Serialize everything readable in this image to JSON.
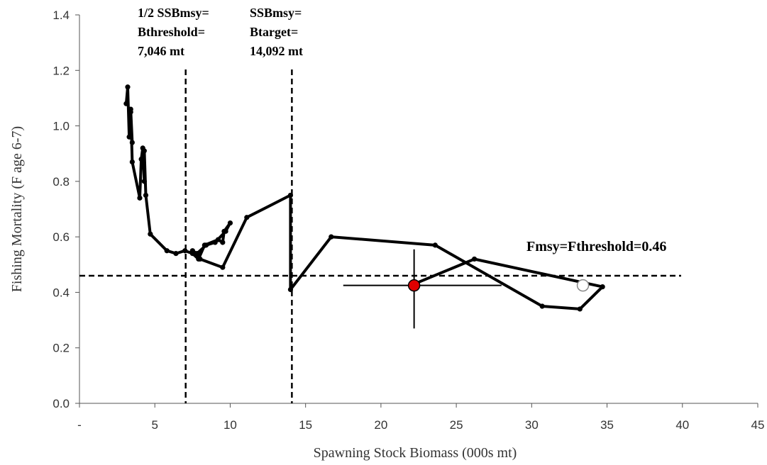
{
  "chart_data": {
    "type": "line",
    "title": "",
    "xlabel": "Spawning Stock Biomass (000s mt)",
    "ylabel": "Fishing Mortality (F age 6-7)",
    "xlim": [
      0,
      45
    ],
    "ylim": [
      0,
      1.4
    ],
    "x_ticks": [
      0,
      5,
      10,
      15,
      20,
      25,
      30,
      35,
      40,
      45
    ],
    "x_tick_labels": [
      "-",
      "5",
      "10",
      "15",
      "20",
      "25",
      "30",
      "35",
      "40",
      "45"
    ],
    "y_ticks": [
      0,
      0.2,
      0.4,
      0.6,
      0.8,
      1.0,
      1.2,
      1.4
    ],
    "y_tick_labels": [
      "0.0",
      "0.2",
      "0.4",
      "0.6",
      "0.8",
      "1.0",
      "1.2",
      "1.4"
    ],
    "grid": false,
    "series": [
      {
        "color": "#000000",
        "points": [
          [
            3.1,
            1.08
          ],
          [
            3.2,
            1.14
          ],
          [
            3.3,
            0.96
          ],
          [
            3.4,
            1.05
          ],
          [
            3.5,
            0.94
          ],
          [
            3.4,
            1.06
          ],
          [
            3.5,
            0.87
          ],
          [
            4.0,
            0.74
          ],
          [
            4.1,
            0.88
          ],
          [
            4.2,
            0.92
          ],
          [
            4.3,
            0.8
          ],
          [
            4.3,
            0.91
          ],
          [
            4.4,
            0.75
          ],
          [
            4.7,
            0.61
          ],
          [
            5.8,
            0.55
          ],
          [
            6.4,
            0.54
          ],
          [
            7.0,
            0.55
          ],
          [
            7.5,
            0.54
          ],
          [
            7.9,
            0.52
          ],
          [
            8.3,
            0.57
          ],
          [
            9.2,
            0.59
          ],
          [
            9.5,
            0.58
          ],
          [
            9.6,
            0.62
          ],
          [
            10.0,
            0.65
          ],
          [
            9.7,
            0.62
          ],
          [
            9.0,
            0.58
          ],
          [
            8.4,
            0.57
          ],
          [
            7.8,
            0.54
          ],
          [
            7.5,
            0.55
          ],
          [
            8.0,
            0.52
          ],
          [
            9.5,
            0.49
          ],
          [
            11.1,
            0.67
          ],
          [
            14.0,
            0.75
          ],
          [
            14.0,
            0.41
          ],
          [
            16.7,
            0.6
          ],
          [
            23.6,
            0.57
          ],
          [
            30.7,
            0.35
          ],
          [
            33.2,
            0.34
          ],
          [
            34.7,
            0.42
          ],
          [
            26.2,
            0.52
          ],
          [
            22.2,
            0.43
          ]
        ]
      }
    ],
    "current_estimate": {
      "x": 22.2,
      "y": 0.425,
      "x_interval": [
        17.5,
        28.0
      ],
      "y_interval": [
        0.27,
        0.555
      ],
      "color": "#e00000"
    },
    "open_point": {
      "x": 33.4,
      "y": 0.425
    },
    "reference_lines": [
      {
        "orientation": "vertical",
        "value": 7.046,
        "label_lines": [
          "1/2 SSBmsy=",
          "Bthreshold=",
          "7,046 mt"
        ]
      },
      {
        "orientation": "vertical",
        "value": 14.092,
        "label_lines": [
          "SSBmsy=",
          "Btarget=",
          "14,092 mt"
        ]
      },
      {
        "orientation": "horizontal",
        "value": 0.46,
        "label_lines": [
          "Fmsy=Fthreshold=0.46"
        ]
      }
    ]
  }
}
